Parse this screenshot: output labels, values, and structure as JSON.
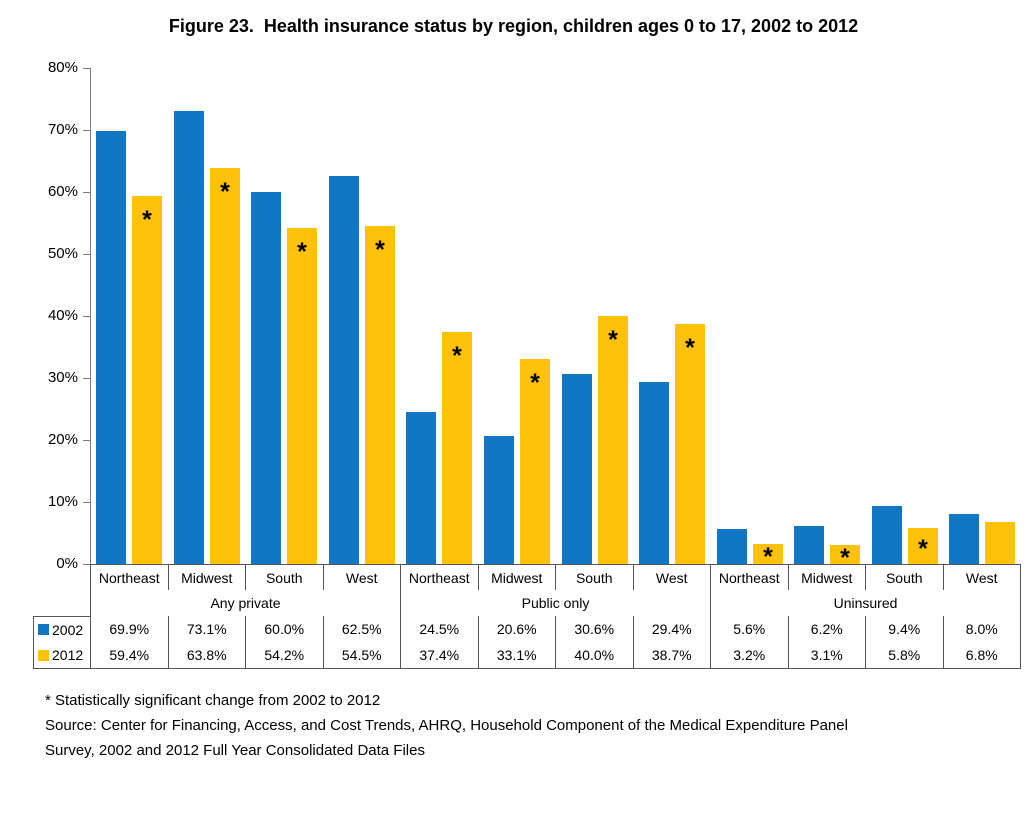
{
  "figure": {
    "title": "Figure 23.  Health insurance status by region, children ages 0 to 17, 2002 to 2012",
    "footnote_lines": [
      "* Statistically significant change from 2002 to 2012",
      "Source: Center for Financing, Access, and Cost Trends, AHRQ, Household Component of the Medical Expenditure Panel",
      "Survey, 2002 and 2012 Full Year Consolidated Data Files"
    ]
  },
  "colors": {
    "series_2002": "#1176C4",
    "series_2012": "#FFC10A",
    "table_border": "#565656",
    "axis": "#7a7a7a"
  },
  "chart_data": {
    "type": "bar",
    "title": "Figure 23.  Health insurance status by region, children ages 0 to 17, 2002 to 2012",
    "group_labels": [
      "Any private",
      "Public only",
      "Uninsured"
    ],
    "categories": [
      "Northeast",
      "Midwest",
      "South",
      "West",
      "Northeast",
      "Midwest",
      "South",
      "West",
      "Northeast",
      "Midwest",
      "South",
      "West"
    ],
    "series": [
      {
        "name": "2002",
        "color": "#1176C4",
        "values": [
          69.9,
          73.1,
          60.0,
          62.5,
          24.5,
          20.6,
          30.6,
          29.4,
          5.6,
          6.2,
          9.4,
          8.0
        ]
      },
      {
        "name": "2012",
        "color": "#FFC10A",
        "values": [
          59.4,
          63.8,
          54.2,
          54.5,
          37.4,
          33.1,
          40.0,
          38.7,
          3.2,
          3.1,
          5.8,
          6.8
        ],
        "significant": [
          true,
          true,
          true,
          true,
          true,
          true,
          true,
          true,
          true,
          true,
          true,
          false
        ]
      }
    ],
    "ylim": [
      0,
      80
    ],
    "y_tick_step": 10,
    "y_tick_labels": [
      "0%",
      "10%",
      "20%",
      "30%",
      "40%",
      "50%",
      "60%",
      "70%",
      "80%"
    ],
    "significance_marker": "*",
    "grid": false,
    "legend_position": "data-table-left",
    "xlabel": "",
    "ylabel": ""
  },
  "table": {
    "region_headers": [
      "Northeast",
      "Midwest",
      "South",
      "West",
      "Northeast",
      "Midwest",
      "South",
      "West",
      "Northeast",
      "Midwest",
      "South",
      "West"
    ],
    "group_headers": [
      {
        "label": "Any private",
        "colspan": 4
      },
      {
        "label": "Public only",
        "colspan": 4
      },
      {
        "label": "Uninsured",
        "colspan": 4
      }
    ],
    "rows": [
      {
        "label": "2002",
        "swatch_color": "#1176C4",
        "cells": [
          "69.9%",
          "73.1%",
          "60.0%",
          "62.5%",
          "24.5%",
          "20.6%",
          "30.6%",
          "29.4%",
          "5.6%",
          "6.2%",
          "9.4%",
          "8.0%"
        ]
      },
      {
        "label": "2012",
        "swatch_color": "#FFC10A",
        "cells": [
          "59.4%",
          "63.8%",
          "54.2%",
          "54.5%",
          "37.4%",
          "33.1%",
          "40.0%",
          "38.7%",
          "3.2%",
          "3.1%",
          "5.8%",
          "6.8%"
        ]
      }
    ]
  }
}
